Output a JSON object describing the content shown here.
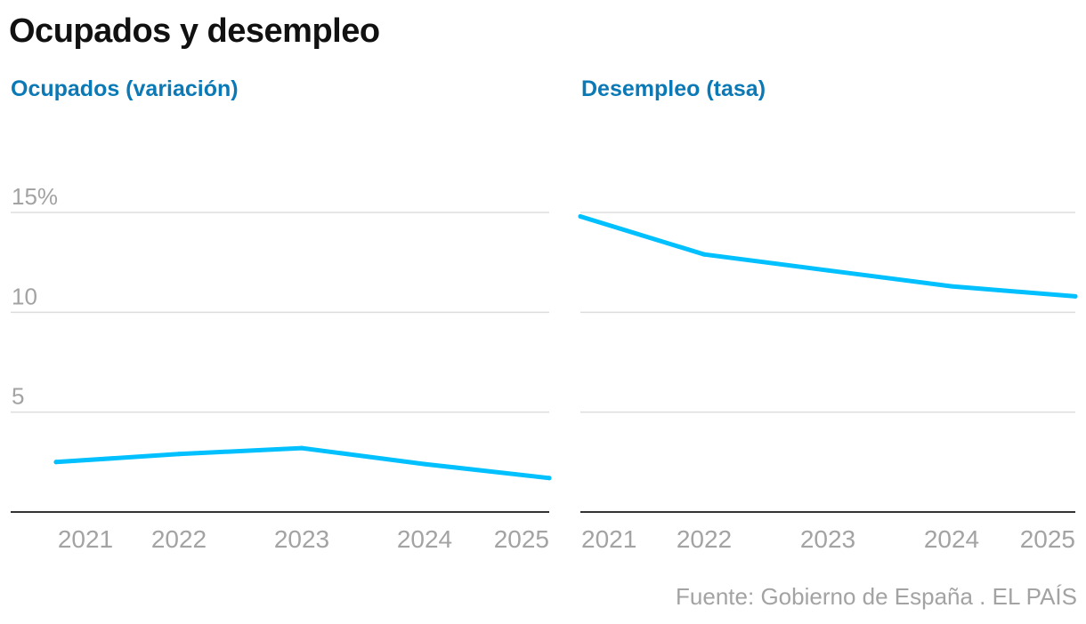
{
  "title": "Ocupados y desempleo",
  "source": "Fuente: Gobierno de España . EL PAÍS",
  "colors": {
    "line": "#00c0ff",
    "grid": "#dddddd",
    "axis": "#333333",
    "tick": "#a3a3a3",
    "panel_title": "#0a79b5"
  },
  "y_tick_labels": [
    "15%",
    "10",
    "5"
  ],
  "chart_data": [
    {
      "type": "line",
      "title": "Ocupados (variación)",
      "x": [
        2021,
        2022,
        2023,
        2024,
        2025
      ],
      "series": [
        {
          "values": [
            2.5,
            2.9,
            3.2,
            2.4,
            1.7
          ]
        }
      ],
      "ylim": [
        0,
        15
      ],
      "yticks": [
        5,
        10,
        15
      ],
      "grid": true
    },
    {
      "type": "line",
      "title": "Desempleo (tasa)",
      "x": [
        2021,
        2022,
        2023,
        2024,
        2025
      ],
      "series": [
        {
          "values": [
            14.8,
            12.9,
            12.1,
            11.3,
            10.8
          ]
        }
      ],
      "ylim": [
        0,
        15
      ],
      "yticks": [
        5,
        10,
        15
      ],
      "grid": true
    }
  ]
}
